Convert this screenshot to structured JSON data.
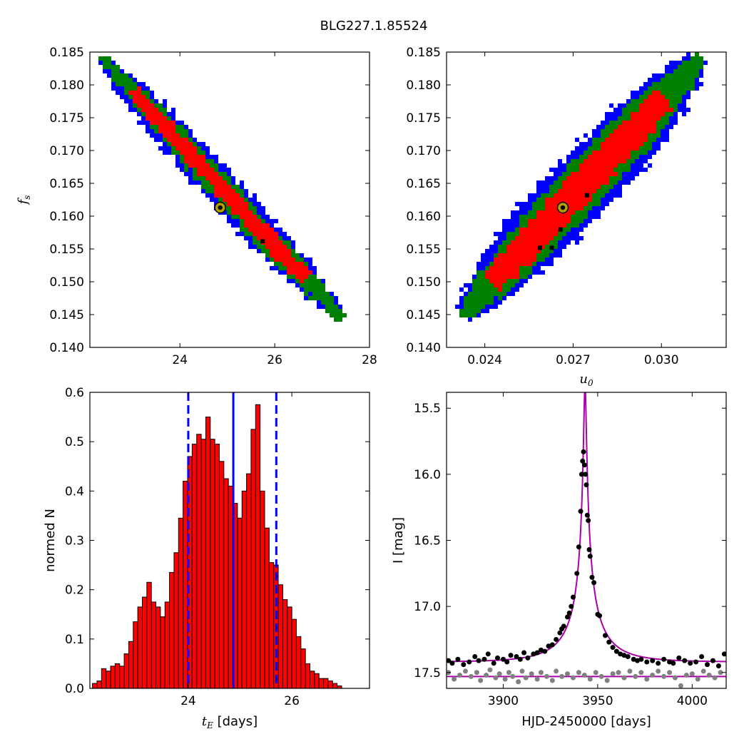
{
  "title": "BLG227.1.85524",
  "chart_data": [
    {
      "id": "fs_vs_tE",
      "type": "heatmap",
      "xlim": [
        22.1,
        28
      ],
      "ylim": [
        0.14,
        0.185
      ],
      "xticks": [
        24,
        26,
        28
      ],
      "yticks": [
        0.14,
        0.145,
        0.15,
        0.155,
        0.16,
        0.165,
        0.17,
        0.175,
        0.18,
        0.185
      ],
      "xlabel": "",
      "ylabel": "f_s",
      "regions_color": {
        "outer": "#0000ff",
        "middle": "#008000",
        "inner": "#ff0000"
      },
      "ridge": {
        "x0": 22.4,
        "y0": 0.1838,
        "x1": 27.4,
        "y1": 0.1445
      },
      "best_fit": {
        "x": 24.85,
        "y": 0.1613
      }
    },
    {
      "id": "fs_vs_u0",
      "type": "heatmap",
      "xlim": [
        0.0227,
        0.0322
      ],
      "ylim": [
        0.14,
        0.185
      ],
      "xticks": [
        0.024,
        0.027,
        0.03
      ],
      "xtick_labels": [
        "0.024",
        "0.027",
        "0.030"
      ],
      "yticks": [
        0.14,
        0.145,
        0.15,
        0.155,
        0.16,
        0.165,
        0.17,
        0.175,
        0.18,
        0.185
      ],
      "xlabel": "u_0",
      "ylabel": "",
      "regions_color": {
        "outer": "#0000ff",
        "middle": "#008000",
        "inner": "#ff0000"
      },
      "ridge": {
        "x0": 0.0233,
        "y0": 0.1452,
        "x1": 0.0313,
        "y1": 0.1838
      },
      "best_fit": {
        "x": 0.02665,
        "y": 0.1613
      }
    },
    {
      "id": "tE_histogram",
      "type": "bar",
      "xlim": [
        22.1,
        27.5
      ],
      "ylim": [
        0,
        0.6
      ],
      "xticks": [
        24,
        26
      ],
      "yticks": [
        0.0,
        0.1,
        0.2,
        0.3,
        0.4,
        0.5,
        0.6
      ],
      "ytick_labels": [
        "0.0",
        "0.1",
        "0.2",
        "0.3",
        "0.4",
        "0.5",
        "0.6"
      ],
      "xlabel": "t_E [days]",
      "ylabel": "normed N",
      "bin_start": 22.15,
      "bin_width": 0.0875,
      "values": [
        0.01,
        0.015,
        0.04,
        0.035,
        0.045,
        0.05,
        0.045,
        0.07,
        0.095,
        0.135,
        0.165,
        0.185,
        0.215,
        0.175,
        0.165,
        0.145,
        0.175,
        0.235,
        0.275,
        0.345,
        0.42,
        0.47,
        0.495,
        0.515,
        0.505,
        0.55,
        0.505,
        0.495,
        0.46,
        0.425,
        0.41,
        0.375,
        0.345,
        0.4,
        0.435,
        0.525,
        0.575,
        0.4,
        0.325,
        0.255,
        0.25,
        0.21,
        0.18,
        0.165,
        0.14,
        0.105,
        0.08,
        0.05,
        0.035,
        0.03,
        0.02,
        0.02,
        0.015,
        0.01,
        0.005
      ],
      "bar_color": "#ff0000",
      "vlines": [
        {
          "x": 24.0,
          "style": "dashed",
          "color": "#0000ff"
        },
        {
          "x": 24.87,
          "style": "solid",
          "color": "#0000ff"
        },
        {
          "x": 25.7,
          "style": "dashed",
          "color": "#0000ff"
        }
      ]
    },
    {
      "id": "lightcurve",
      "type": "scatter",
      "xlim": [
        3870,
        4018
      ],
      "ylim": [
        17.62,
        15.38
      ],
      "xticks": [
        3900,
        3950,
        4000
      ],
      "yticks": [
        15.5,
        16.0,
        16.5,
        17.0,
        17.5
      ],
      "ytick_labels": [
        "15.5",
        "16.0",
        "16.5",
        "17.0",
        "17.5"
      ],
      "xlabel": "HJD-2450000 [days]",
      "ylabel": "I [mag]",
      "model_color": "#aa00aa",
      "model": {
        "t0": 3943.3,
        "tE": 24.87,
        "u0": 0.0267,
        "fs": 0.1613,
        "I_base": 17.42
      },
      "baseline2": 17.53,
      "black_points": [
        [
          3871,
          17.41
        ],
        [
          3873,
          17.43
        ],
        [
          3876,
          17.4
        ],
        [
          3879,
          17.44
        ],
        [
          3882,
          17.42
        ],
        [
          3885,
          17.38
        ],
        [
          3887,
          17.41
        ],
        [
          3890,
          17.4
        ],
        [
          3892,
          17.36
        ],
        [
          3895,
          17.43
        ],
        [
          3897,
          17.39
        ],
        [
          3900,
          17.4
        ],
        [
          3902,
          17.42
        ],
        [
          3904,
          17.37
        ],
        [
          3907,
          17.38
        ],
        [
          3909,
          17.4
        ],
        [
          3911,
          17.35
        ],
        [
          3913,
          17.39
        ],
        [
          3916,
          17.36
        ],
        [
          3918,
          17.35
        ],
        [
          3920,
          17.33
        ],
        [
          3922,
          17.34
        ],
        [
          3924,
          17.3
        ],
        [
          3926,
          17.29
        ],
        [
          3928,
          17.25
        ],
        [
          3930,
          17.2
        ],
        [
          3931,
          17.17
        ],
        [
          3932,
          17.15
        ],
        [
          3934,
          17.08
        ],
        [
          3935,
          17.05
        ],
        [
          3936,
          17.0
        ],
        [
          3937,
          16.93
        ],
        [
          3939,
          16.75
        ],
        [
          3940,
          16.55
        ],
        [
          3941,
          16.28
        ],
        [
          3941.5,
          16.0
        ],
        [
          3942,
          15.9
        ],
        [
          3942.5,
          15.83
        ],
        [
          3943,
          15.93
        ],
        [
          3943.5,
          16.0
        ],
        [
          3944,
          16.08
        ],
        [
          3944.5,
          16.31
        ],
        [
          3945,
          16.35
        ],
        [
          3945.5,
          16.57
        ],
        [
          3946,
          16.62
        ],
        [
          3947,
          16.78
        ],
        [
          3948,
          16.82
        ],
        [
          3950,
          17.06
        ],
        [
          3951,
          17.07
        ],
        [
          3954,
          17.22
        ],
        [
          3956,
          17.27
        ],
        [
          3958,
          17.31
        ],
        [
          3960,
          17.34
        ],
        [
          3962,
          17.36
        ],
        [
          3964,
          17.37
        ],
        [
          3966,
          17.38
        ],
        [
          3969,
          17.4
        ],
        [
          3971,
          17.41
        ],
        [
          3973,
          17.4
        ],
        [
          3976,
          17.42
        ],
        [
          3979,
          17.41
        ],
        [
          3982,
          17.43
        ],
        [
          3985,
          17.4
        ],
        [
          3988,
          17.42
        ],
        [
          3990,
          17.43
        ],
        [
          3993,
          17.39
        ],
        [
          3996,
          17.41
        ],
        [
          3999,
          17.43
        ],
        [
          4002,
          17.42
        ],
        [
          4005,
          17.38
        ],
        [
          4008,
          17.44
        ],
        [
          4011,
          17.41
        ],
        [
          4014,
          17.45
        ],
        [
          4017,
          17.36
        ]
      ],
      "gray_points": [
        [
          3871,
          17.5
        ],
        [
          3874,
          17.55
        ],
        [
          3877,
          17.52
        ],
        [
          3880,
          17.49
        ],
        [
          3883,
          17.53
        ],
        [
          3886,
          17.5
        ],
        [
          3888,
          17.56
        ],
        [
          3891,
          17.52
        ],
        [
          3893,
          17.48
        ],
        [
          3896,
          17.54
        ],
        [
          3898,
          17.51
        ],
        [
          3901,
          17.55
        ],
        [
          3903,
          17.5
        ],
        [
          3905,
          17.53
        ],
        [
          3908,
          17.57
        ],
        [
          3910,
          17.49
        ],
        [
          3912,
          17.54
        ],
        [
          3915,
          17.51
        ],
        [
          3918,
          17.55
        ],
        [
          3920,
          17.5
        ],
        [
          3923,
          17.53
        ],
        [
          3926,
          17.56
        ],
        [
          3928,
          17.49
        ],
        [
          3931,
          17.53
        ],
        [
          3934,
          17.51
        ],
        [
          3937,
          17.54
        ],
        [
          3940,
          17.5
        ],
        [
          3943,
          17.52
        ],
        [
          3946,
          17.55
        ],
        [
          3949,
          17.5
        ],
        [
          3952,
          17.53
        ],
        [
          3955,
          17.56
        ],
        [
          3958,
          17.51
        ],
        [
          3961,
          17.5
        ],
        [
          3964,
          17.54
        ],
        [
          3967,
          17.49
        ],
        [
          3970,
          17.53
        ],
        [
          3973,
          17.5
        ],
        [
          3976,
          17.55
        ],
        [
          3979,
          17.52
        ],
        [
          3982,
          17.49
        ],
        [
          3985,
          17.53
        ],
        [
          3988,
          17.5
        ],
        [
          3991,
          17.54
        ],
        [
          3994,
          17.6
        ],
        [
          3997,
          17.52
        ],
        [
          4000,
          17.51
        ],
        [
          4003,
          17.55
        ],
        [
          4006,
          17.49
        ],
        [
          4009,
          17.52
        ],
        [
          4012,
          17.54
        ],
        [
          4015,
          17.5
        ]
      ]
    }
  ]
}
